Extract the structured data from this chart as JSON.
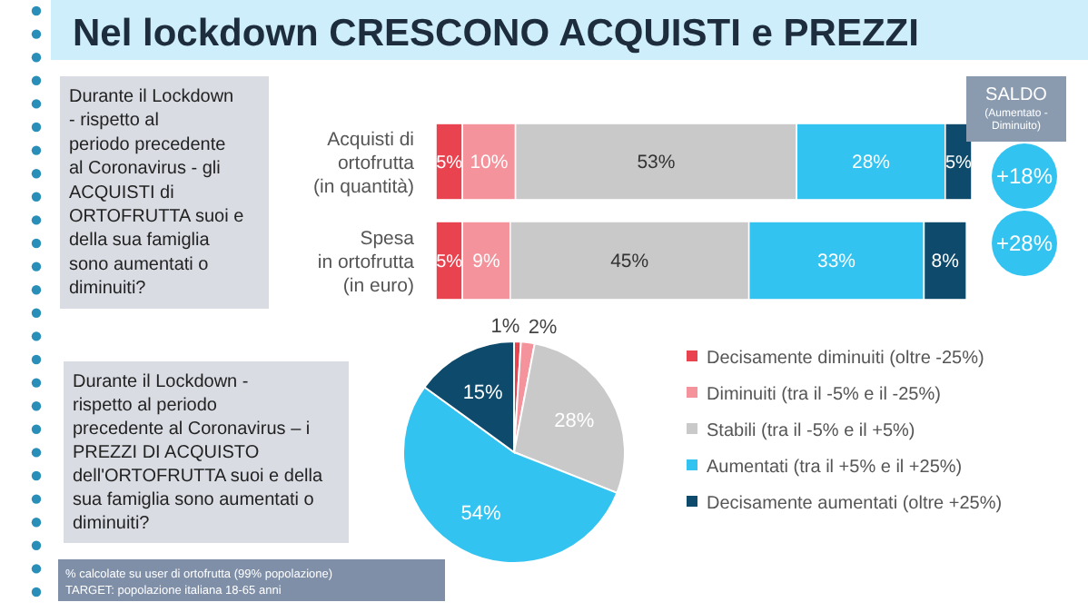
{
  "chart_data": [
    {
      "type": "bar",
      "orientation": "horizontal",
      "stacked": true,
      "title": "Nel lockdown CRESCONO ACQUISTI e PREZZI",
      "categories": [
        "Acquisti di\nortofrutta\n(in quantità)",
        "Spesa\nin ortofrutta\n(in euro)"
      ],
      "series": [
        {
          "color": "#e8434f",
          "values": [
            5,
            5
          ],
          "value_labels": [
            "5%",
            "5%"
          ]
        },
        {
          "color": "#f4939b",
          "values": [
            10,
            9
          ],
          "value_labels": [
            "10%",
            "9%"
          ]
        },
        {
          "color": "#c9c9c9",
          "values": [
            53,
            45
          ],
          "value_labels": [
            "53%",
            "45%"
          ]
        },
        {
          "color": "#33c3f0",
          "values": [
            28,
            33
          ],
          "value_labels": [
            "28%",
            "33%"
          ]
        },
        {
          "color": "#0d4a6b",
          "values": [
            5,
            8
          ],
          "value_labels": [
            "5%",
            "8%"
          ]
        }
      ],
      "annotations": [
        "Durante il Lockdown - rispetto al periodo precedente al Coronavirus - gli ACQUISTI di ORTOFRUTTA suoi e della sua famiglia sono aumentati o diminuiti?",
        "SALDO",
        "(Aumentato - Diminuito)",
        "+18%",
        "+28%"
      ]
    },
    {
      "type": "pie",
      "categories": [
        "Decisamente diminuiti (oltre -25%)",
        "Diminuiti (tra il -5% e il -25%)",
        "Stabili (tra il -5% e il +5%)",
        "Aumentati (tra il +5% e il +25%)",
        "Decisamente aumentati (oltre +25%)"
      ],
      "values": [
        1,
        2,
        28,
        54,
        15
      ],
      "value_labels": [
        "1%",
        "2%",
        "28%",
        "54%",
        "15%"
      ],
      "colors": [
        "#e8434f",
        "#f4939b",
        "#c9c9c9",
        "#33c3f0",
        "#0d4a6b"
      ],
      "legend": "right",
      "annotations": [
        "Durante il Lockdown - rispetto al periodo precedente al Coronavirus – i PREZZI DI ACQUISTO dell'ORTOFRUTTA suoi e della sua famiglia sono aumentati o diminuiti?",
        "% calcolate su user di ortofrutta (99% popolazione)",
        "TARGET: popolazione italiana 18-65 anni"
      ]
    }
  ]
}
